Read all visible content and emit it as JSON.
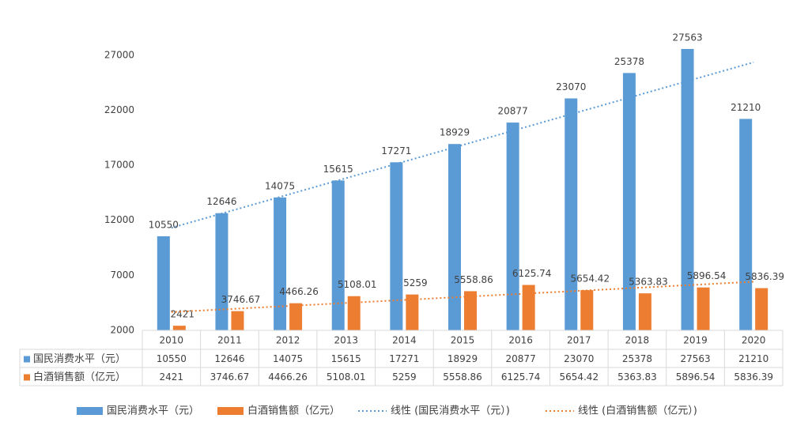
{
  "chart_data": {
    "type": "bar",
    "categories": [
      "2010",
      "2011",
      "2012",
      "2013",
      "2014",
      "2015",
      "2016",
      "2017",
      "2018",
      "2019",
      "2020"
    ],
    "series": [
      {
        "name": "国民消费水平（元）",
        "color": "#5b9bd5",
        "values": [
          10550,
          12646,
          14075,
          15615,
          17271,
          18929,
          20877,
          23070,
          25378,
          27563,
          21210
        ]
      },
      {
        "name": "白酒销售额（亿元）",
        "color": "#ed7d31",
        "values": [
          2421,
          3746.67,
          4466.26,
          5108.01,
          5259,
          5558.86,
          6125.74,
          5654.42,
          5363.83,
          5896.54,
          5836.39
        ]
      }
    ],
    "trendlines": [
      {
        "name": "线性 (国民消费水平（元）)",
        "series": 0,
        "color": "#5b9bd5"
      },
      {
        "name": "线性 (白酒销售额（亿元）)",
        "series": 1,
        "color": "#ed7d31"
      }
    ],
    "ylim": [
      2000,
      30000
    ],
    "yticks": [
      2000,
      7000,
      12000,
      17000,
      22000,
      27000
    ],
    "grid": false,
    "data_table": true
  }
}
